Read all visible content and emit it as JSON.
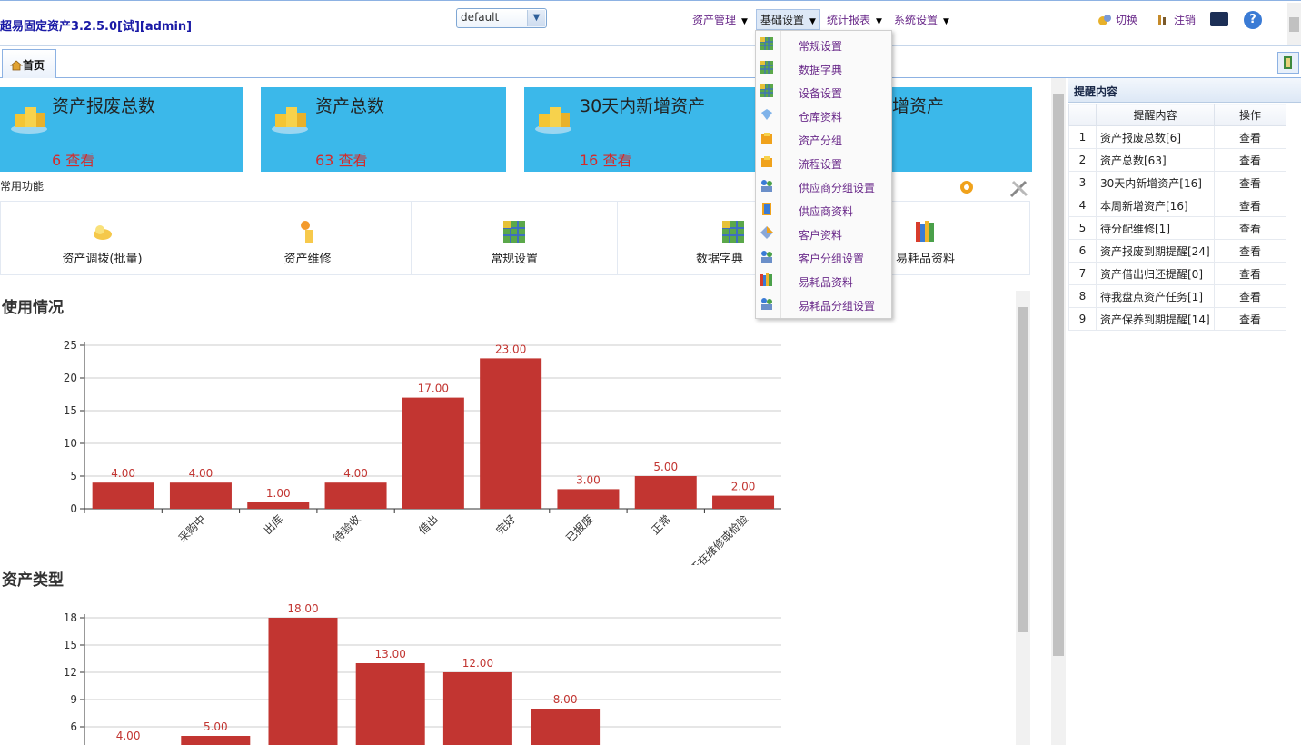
{
  "app": {
    "title": "超易固定资产3.2.5.0[试][admin]"
  },
  "theme": {
    "selected": "default"
  },
  "menu": [
    {
      "label": "资产管理"
    },
    {
      "label": "基础设置"
    },
    {
      "label": "统计报表"
    },
    {
      "label": "系统设置"
    }
  ],
  "tools": {
    "switch_label": "切换",
    "logout_label": "注销"
  },
  "tabs": {
    "home_label": "首页"
  },
  "cards": [
    {
      "title": "资产报废总数",
      "count": "6 查看"
    },
    {
      "title": "资产总数",
      "count": "63 查看"
    },
    {
      "title": "30天内新增资产",
      "count": "16 查看"
    },
    {
      "title": "增资产"
    }
  ],
  "common": {
    "label": "常用功能",
    "items": [
      {
        "label": "资产调拨(批量)"
      },
      {
        "label": "资产维修"
      },
      {
        "label": "常规设置"
      },
      {
        "label": "数据字典"
      },
      {
        "label": "易耗品资料"
      }
    ]
  },
  "dropdown": {
    "items": [
      {
        "label": "常规设置",
        "icon": "cube-icon"
      },
      {
        "label": "数据字典",
        "icon": "cube-icon"
      },
      {
        "label": "设备设置",
        "icon": "cube-icon"
      },
      {
        "label": "仓库资料",
        "icon": "gem-icon"
      },
      {
        "label": "资产分组",
        "icon": "box-icon"
      },
      {
        "label": "流程设置",
        "icon": "box-icon"
      },
      {
        "label": "供应商分组设置",
        "icon": "users-icon"
      },
      {
        "label": "供应商资料",
        "icon": "book-icon"
      },
      {
        "label": "客户资料",
        "icon": "diamond-icon"
      },
      {
        "label": "客户分组设置",
        "icon": "users-icon"
      },
      {
        "label": "易耗品资料",
        "icon": "books-icon"
      },
      {
        "label": "易耗品分组设置",
        "icon": "users-icon"
      }
    ]
  },
  "reminder": {
    "title": "提醒内容",
    "headers": [
      "提醒内容",
      "操作"
    ],
    "rows": [
      {
        "n": "1",
        "content": "资产报废总数[6]",
        "op": "查看"
      },
      {
        "n": "2",
        "content": "资产总数[63]",
        "op": "查看"
      },
      {
        "n": "3",
        "content": "30天内新增资产[16]",
        "op": "查看"
      },
      {
        "n": "4",
        "content": "本周新增资产[16]",
        "op": "查看"
      },
      {
        "n": "5",
        "content": "待分配维修[1]",
        "op": "查看"
      },
      {
        "n": "6",
        "content": "资产报废到期提醒[24]",
        "op": "查看"
      },
      {
        "n": "7",
        "content": "资产借出归还提醒[0]",
        "op": "查看"
      },
      {
        "n": "8",
        "content": "待我盘点资产任务[1]",
        "op": "查看"
      },
      {
        "n": "9",
        "content": "资产保养到期提醒[14]",
        "op": "查看"
      }
    ]
  },
  "chart_data": [
    {
      "type": "bar",
      "title": "使用情况",
      "categories": [
        "",
        "采购中",
        "出库",
        "待验收",
        "借出",
        "完好",
        "已报废",
        "正常",
        "正在维修或检验"
      ],
      "values": [
        4,
        4,
        1,
        4,
        17,
        23,
        3,
        5,
        2
      ],
      "ylim": [
        0,
        25
      ],
      "yticks": [
        0,
        5,
        10,
        15,
        20,
        25
      ],
      "bar_color": "#c23531",
      "grid": true
    },
    {
      "type": "bar",
      "title": "资产类型",
      "categories": [
        "",
        "",
        "",
        "",
        "",
        ""
      ],
      "values": [
        4,
        5,
        18,
        13,
        12,
        8
      ],
      "ylim": [
        3,
        18
      ],
      "yticks": [
        6,
        9,
        12,
        15,
        18
      ],
      "bar_color": "#c23531",
      "grid": true
    }
  ]
}
